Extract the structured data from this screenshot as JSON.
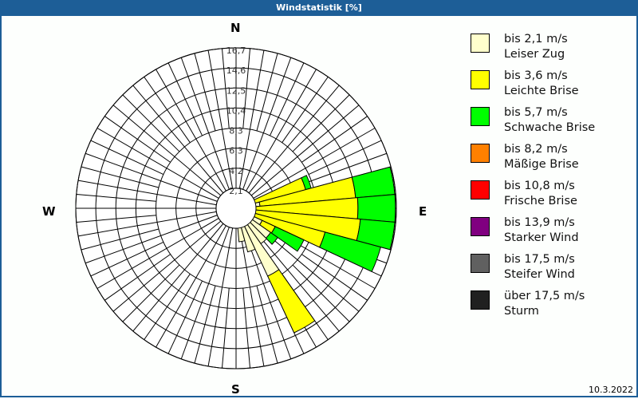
{
  "window": {
    "title": "Windstatistik [%]",
    "date": "10.3.2022"
  },
  "compass": {
    "n": "N",
    "e": "E",
    "s": "S",
    "w": "W"
  },
  "legend": [
    {
      "range": "bis 2,1 m/s",
      "name": "Leiser Zug",
      "color": "#ffffcc"
    },
    {
      "range": "bis 3,6 m/s",
      "name": "Leichte Brise",
      "color": "#ffff00"
    },
    {
      "range": "bis 5,7 m/s",
      "name": "Schwache Brise",
      "color": "#00ff00"
    },
    {
      "range": "bis 8,2 m/s",
      "name": "Mäßige Brise",
      "color": "#ff8000"
    },
    {
      "range": "bis 10,8 m/s",
      "name": "Frische Brise",
      "color": "#ff0000"
    },
    {
      "range": "bis 13,9 m/s",
      "name": "Starker Wind",
      "color": "#800080"
    },
    {
      "range": "bis 17,5 m/s",
      "name": "Steifer Wind",
      "color": "#606060"
    },
    {
      "range": "über 17,5 m/s",
      "name": "Sturm",
      "color": "#202020"
    }
  ],
  "chart_data": {
    "type": "wind-rose",
    "title": "Windstatistik [%]",
    "ring_labels": [
      "2,1",
      "4,2",
      "6,3",
      "8,3",
      "10,4",
      "12,5",
      "14,6",
      "16,7"
    ],
    "rmax": 16.7,
    "sector_width_deg": 10,
    "classes": [
      "bis 2,1 m/s",
      "bis 3,6 m/s",
      "bis 5,7 m/s",
      "bis 8,2 m/s",
      "bis 10,8 m/s",
      "bis 13,9 m/s",
      "bis 17,5 m/s",
      "über 17,5 m/s"
    ],
    "sectors": [
      {
        "dir": 70,
        "values": [
          0.4,
          7.1,
          0.6,
          0,
          0,
          0,
          0,
          0
        ]
      },
      {
        "dir": 80,
        "values": [
          2.5,
          10.0,
          4.1,
          0,
          0,
          0,
          0,
          0
        ]
      },
      {
        "dir": 90,
        "values": [
          1.0,
          11.7,
          3.9,
          0,
          0,
          0,
          0,
          0
        ]
      },
      {
        "dir": 100,
        "values": [
          1.2,
          11.8,
          3.6,
          0,
          0,
          0,
          0,
          0
        ]
      },
      {
        "dir": 110,
        "values": [
          1.0,
          8.6,
          6.0,
          0,
          0,
          0,
          0,
          0
        ]
      },
      {
        "dir": 120,
        "values": [
          3.0,
          1.5,
          3.3,
          0,
          0,
          0,
          0,
          0
        ]
      },
      {
        "dir": 130,
        "values": [
          4.4,
          0.0,
          0.9,
          0,
          0,
          0,
          0,
          0
        ]
      },
      {
        "dir": 140,
        "values": [
          4.5,
          0,
          0,
          0,
          0,
          0,
          0,
          0
        ]
      },
      {
        "dir": 150,
        "values": [
          7.8,
          6.5,
          0,
          0,
          0,
          0,
          0,
          0
        ]
      },
      {
        "dir": 160,
        "values": [
          4.7,
          0,
          0,
          0,
          0,
          0,
          0,
          0
        ]
      },
      {
        "dir": 170,
        "values": [
          3.5,
          0,
          0,
          0,
          0,
          0,
          0,
          0
        ]
      }
    ]
  }
}
